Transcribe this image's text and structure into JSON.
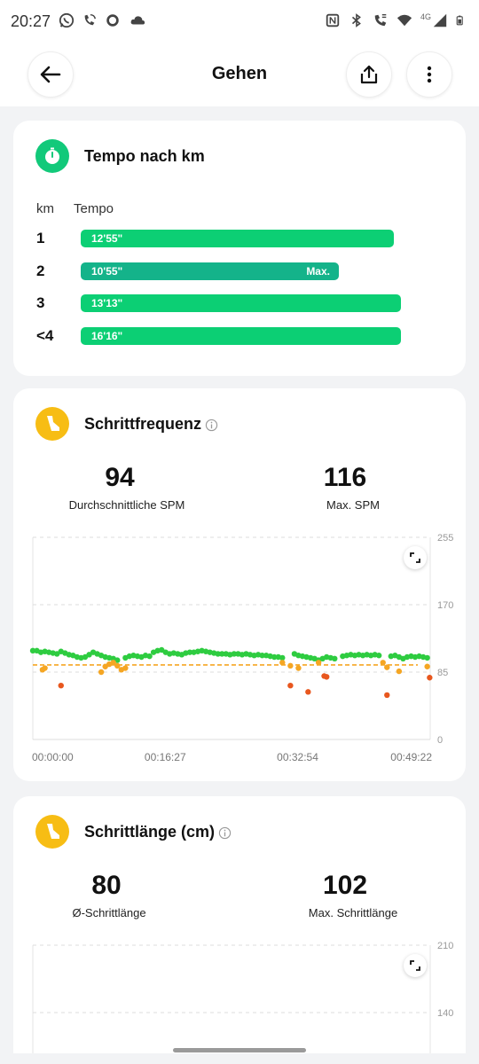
{
  "status_bar": {
    "time": "20:27",
    "network": "4G",
    "icons": [
      "whatsapp-icon",
      "wifi-call-icon",
      "circle-icon",
      "cloud-icon",
      "nfc-icon",
      "bluetooth-icon",
      "phone-wifi-icon",
      "wifi-icon",
      "signal-icon",
      "battery-icon"
    ]
  },
  "header": {
    "title": "Gehen",
    "back_icon": "arrow-left-icon",
    "share_icon": "share-icon",
    "more_icon": "more-vertical-icon"
  },
  "pace_card": {
    "title": "Tempo nach km",
    "icon": "stopwatch-icon",
    "col_km": "km",
    "col_pace": "Tempo",
    "max_label": "Max.",
    "rows": [
      {
        "km": "1",
        "pace": "12'55\"",
        "fraction": 0.958,
        "is_max": false
      },
      {
        "km": "2",
        "pace": "10'55\"",
        "fraction": 0.792,
        "is_max": true
      },
      {
        "km": "3",
        "pace": "13'13\"",
        "fraction": 0.98,
        "is_max": false
      },
      {
        "km": "<4",
        "pace": "16'16\"",
        "fraction": 0.98,
        "is_max": false
      }
    ],
    "colors": {
      "bar": "#0ccf74",
      "max_bar": "#14b38a"
    }
  },
  "cadence_card": {
    "title": "Schrittfrequenz",
    "icon": "shoe-icon",
    "avg_value": "94",
    "avg_label": "Durchschnittliche SPM",
    "max_value": "116",
    "max_label": "Max. SPM"
  },
  "stride_card": {
    "title": "Schrittlänge (cm)",
    "icon": "shoe-icon",
    "avg_value": "80",
    "avg_label": "Ø-Schrittlänge",
    "max_value": "102",
    "max_label": "Max. Schrittlänge"
  },
  "chart_data": [
    {
      "type": "scatter",
      "title": "Schrittfrequenz",
      "ylim": [
        0,
        255
      ],
      "y_ticks": [
        "255",
        "170",
        "85",
        "0"
      ],
      "x_ticks": [
        "00:00:00",
        "00:16:27",
        "00:32:54",
        "00:49:22"
      ],
      "xlim_minutes": [
        0,
        49.37
      ],
      "average_line": 94,
      "grid": true,
      "colors": {
        "high": "#2ecc40",
        "mid": "#f5a623",
        "low": "#e8571e",
        "avg_line": "#f5a623"
      },
      "series": [
        {
          "color_group": "high",
          "points": [
            [
              0,
              112
            ],
            [
              0.5,
              112
            ],
            [
              1,
              110
            ],
            [
              1.5,
              111
            ],
            [
              2,
              110
            ],
            [
              2.5,
              109
            ],
            [
              3,
              108
            ],
            [
              3.5,
              111
            ],
            [
              4,
              109
            ],
            [
              4.5,
              107
            ],
            [
              5,
              106
            ],
            [
              5.5,
              104
            ],
            [
              6,
              103
            ],
            [
              6.5,
              104
            ],
            [
              7,
              107
            ],
            [
              7.5,
              110
            ],
            [
              8,
              108
            ],
            [
              8.5,
              106
            ],
            [
              9,
              104
            ],
            [
              9.5,
              103
            ],
            [
              10,
              102
            ],
            [
              10.5,
              100
            ],
            [
              11.5,
              103
            ],
            [
              12,
              105
            ],
            [
              12.5,
              106
            ],
            [
              13,
              105
            ],
            [
              13.5,
              104
            ],
            [
              14,
              106
            ],
            [
              14.5,
              105
            ],
            [
              15,
              110
            ],
            [
              15.5,
              112
            ],
            [
              16,
              113
            ],
            [
              16.5,
              110
            ],
            [
              17,
              108
            ],
            [
              17.5,
              109
            ],
            [
              18,
              108
            ],
            [
              18.5,
              107
            ],
            [
              19,
              109
            ],
            [
              19.5,
              110
            ],
            [
              20,
              110
            ],
            [
              20.5,
              111
            ],
            [
              21,
              112
            ],
            [
              21.5,
              111
            ],
            [
              22,
              110
            ],
            [
              22.5,
              109
            ],
            [
              23,
              108
            ],
            [
              23.5,
              108
            ],
            [
              24,
              108
            ],
            [
              24.5,
              107
            ],
            [
              25,
              108
            ],
            [
              25.5,
              108
            ],
            [
              26,
              107
            ],
            [
              26.5,
              108
            ],
            [
              27,
              107
            ],
            [
              27.5,
              106
            ],
            [
              28,
              107
            ],
            [
              28.5,
              106
            ],
            [
              29,
              106
            ],
            [
              29.5,
              105
            ],
            [
              30,
              104
            ],
            [
              30.5,
              104
            ],
            [
              31,
              103
            ],
            [
              32.5,
              108
            ],
            [
              33,
              106
            ],
            [
              33.5,
              105
            ],
            [
              34,
              104
            ],
            [
              34.5,
              103
            ],
            [
              35,
              102
            ],
            [
              35.5,
              100
            ],
            [
              36,
              102
            ],
            [
              36.5,
              104
            ],
            [
              37,
              103
            ],
            [
              37.5,
              102
            ],
            [
              38.5,
              105
            ],
            [
              39,
              106
            ],
            [
              39.5,
              107
            ],
            [
              40,
              106
            ],
            [
              40.5,
              107
            ],
            [
              41,
              106
            ],
            [
              41.5,
              107
            ],
            [
              42,
              106
            ],
            [
              42.5,
              107
            ],
            [
              43,
              106
            ],
            [
              44.5,
              105
            ],
            [
              45,
              106
            ],
            [
              45.5,
              104
            ],
            [
              46,
              102
            ],
            [
              46.5,
              104
            ],
            [
              47,
              105
            ],
            [
              47.5,
              104
            ],
            [
              48,
              105
            ],
            [
              48.5,
              104
            ],
            [
              49,
              103
            ]
          ]
        },
        {
          "color_group": "mid",
          "points": [
            [
              1.2,
              88
            ],
            [
              1.5,
              90
            ],
            [
              8.5,
              85
            ],
            [
              9,
              92
            ],
            [
              9.5,
              95
            ],
            [
              10,
              97
            ],
            [
              10.5,
              93
            ],
            [
              11,
              88
            ],
            [
              11.5,
              90
            ],
            [
              31,
              97
            ],
            [
              32,
              93
            ],
            [
              33,
              90
            ],
            [
              35.5,
              97
            ],
            [
              43.5,
              97
            ],
            [
              44,
              91
            ],
            [
              45.5,
              86
            ],
            [
              49,
              92
            ]
          ]
        },
        {
          "color_group": "low",
          "points": [
            [
              3.5,
              68
            ],
            [
              32,
              68
            ],
            [
              34.2,
              60
            ],
            [
              36.2,
              80
            ],
            [
              36.5,
              79
            ],
            [
              44,
              56
            ],
            [
              49.3,
              78
            ]
          ]
        }
      ]
    },
    {
      "type": "scatter",
      "title": "Schrittlänge (cm)",
      "ylim": [
        0,
        210
      ],
      "y_ticks": [
        "210",
        "140"
      ],
      "grid": true
    }
  ]
}
